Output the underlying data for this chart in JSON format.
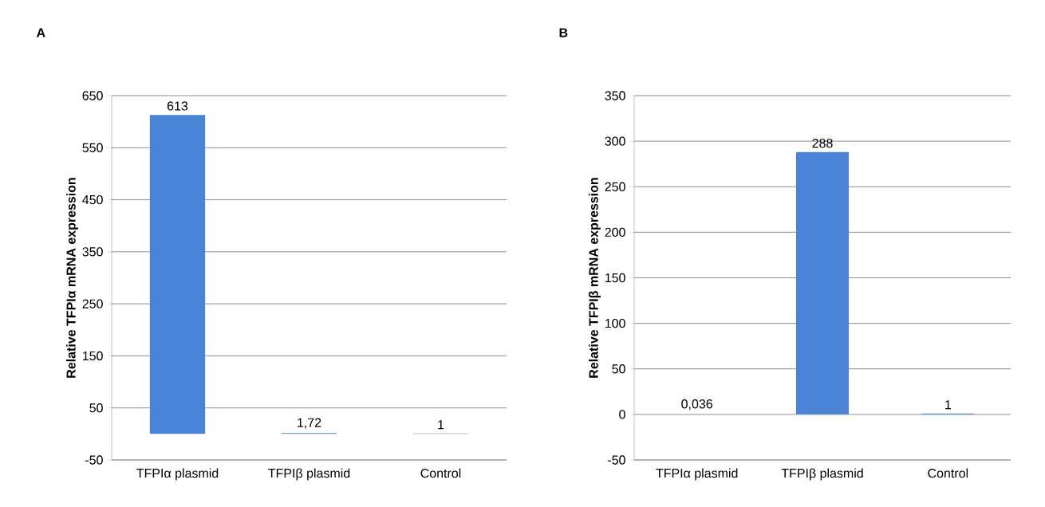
{
  "chart_data": [
    {
      "type": "bar",
      "title": "A",
      "ylabel": "Relative TFPIα mRNA expression",
      "categories": [
        "TFPIα plasmid",
        "TFPIβ plasmid",
        "Control"
      ],
      "values": [
        613,
        1.72,
        1
      ],
      "value_labels": [
        "613",
        "1,72",
        "1"
      ],
      "color": "#4a82d6",
      "ylim": [
        -50,
        650
      ],
      "yticks": [
        -50,
        50,
        150,
        250,
        350,
        450,
        550,
        650
      ],
      "grid": "y"
    },
    {
      "type": "bar",
      "title": "B",
      "ylabel": "Relative TFPIβ mRNA expression",
      "categories": [
        "TFPIα plasmid",
        "TFPIβ plasmid",
        "Control"
      ],
      "values": [
        0.036,
        288,
        1
      ],
      "value_labels": [
        "0,036",
        "288",
        "1"
      ],
      "color": "#4a82d6",
      "ylim": [
        -50,
        350
      ],
      "yticks": [
        -50,
        0,
        50,
        100,
        150,
        200,
        250,
        300,
        350
      ],
      "grid": "y"
    }
  ]
}
